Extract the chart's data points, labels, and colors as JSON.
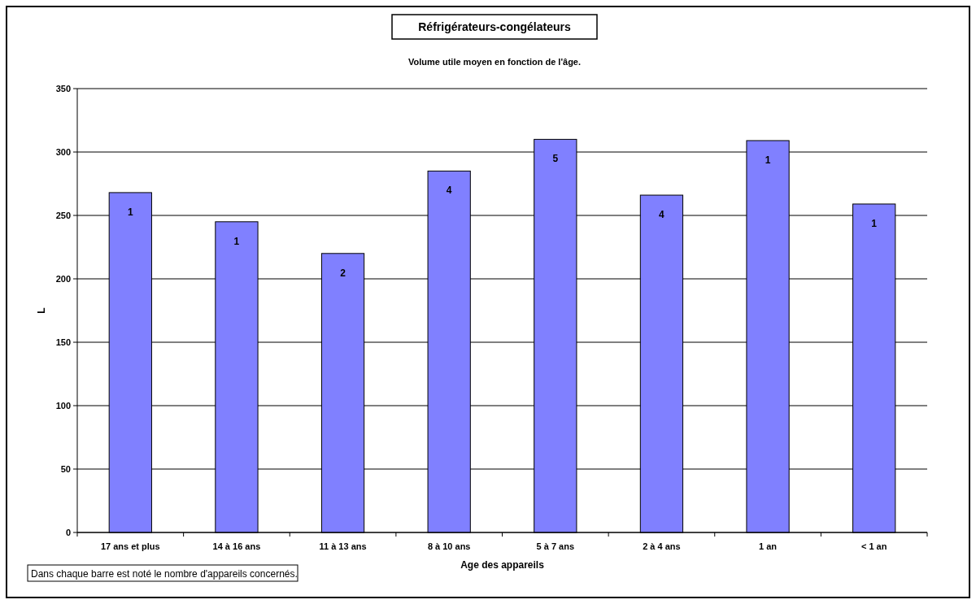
{
  "chart_data": {
    "type": "bar",
    "title": "Réfrigérateurs-congélateurs",
    "subtitle": "Volume utile moyen en fonction de l'âge.",
    "xlabel": "Age des appareils",
    "ylabel": "L",
    "categories": [
      "17 ans et plus",
      "14 à 16 ans",
      "11 à 13 ans",
      "8 à 10 ans",
      "5 à 7 ans",
      "2 à 4 ans",
      "1 an",
      "< 1 an"
    ],
    "values": [
      268,
      245,
      220,
      285,
      310,
      266,
      309,
      259
    ],
    "color": "#8080ff",
    "ylim": [
      0,
      350
    ],
    "yticks": [
      0,
      50,
      100,
      150,
      200,
      250,
      300,
      350
    ],
    "grid": "y",
    "annotations": [
      {
        "text": "1",
        "x": "17 ans et plus",
        "y": 268
      },
      {
        "text": "1",
        "x": "14 à 16 ans",
        "y": 245
      },
      {
        "text": "2",
        "x": "11 à 13 ans",
        "y": 220
      },
      {
        "text": "4",
        "x": "8 à 10 ans",
        "y": 285
      },
      {
        "text": "5",
        "x": "5 à 7 ans",
        "y": 310
      },
      {
        "text": "4",
        "x": "2 à 4 ans",
        "y": 266
      },
      {
        "text": "1",
        "x": "1 an",
        "y": 309
      },
      {
        "text": "1",
        "x": "< 1 an",
        "y": 259
      },
      "Dans chaque barre est noté le nombre d'appareils concernés."
    ]
  }
}
